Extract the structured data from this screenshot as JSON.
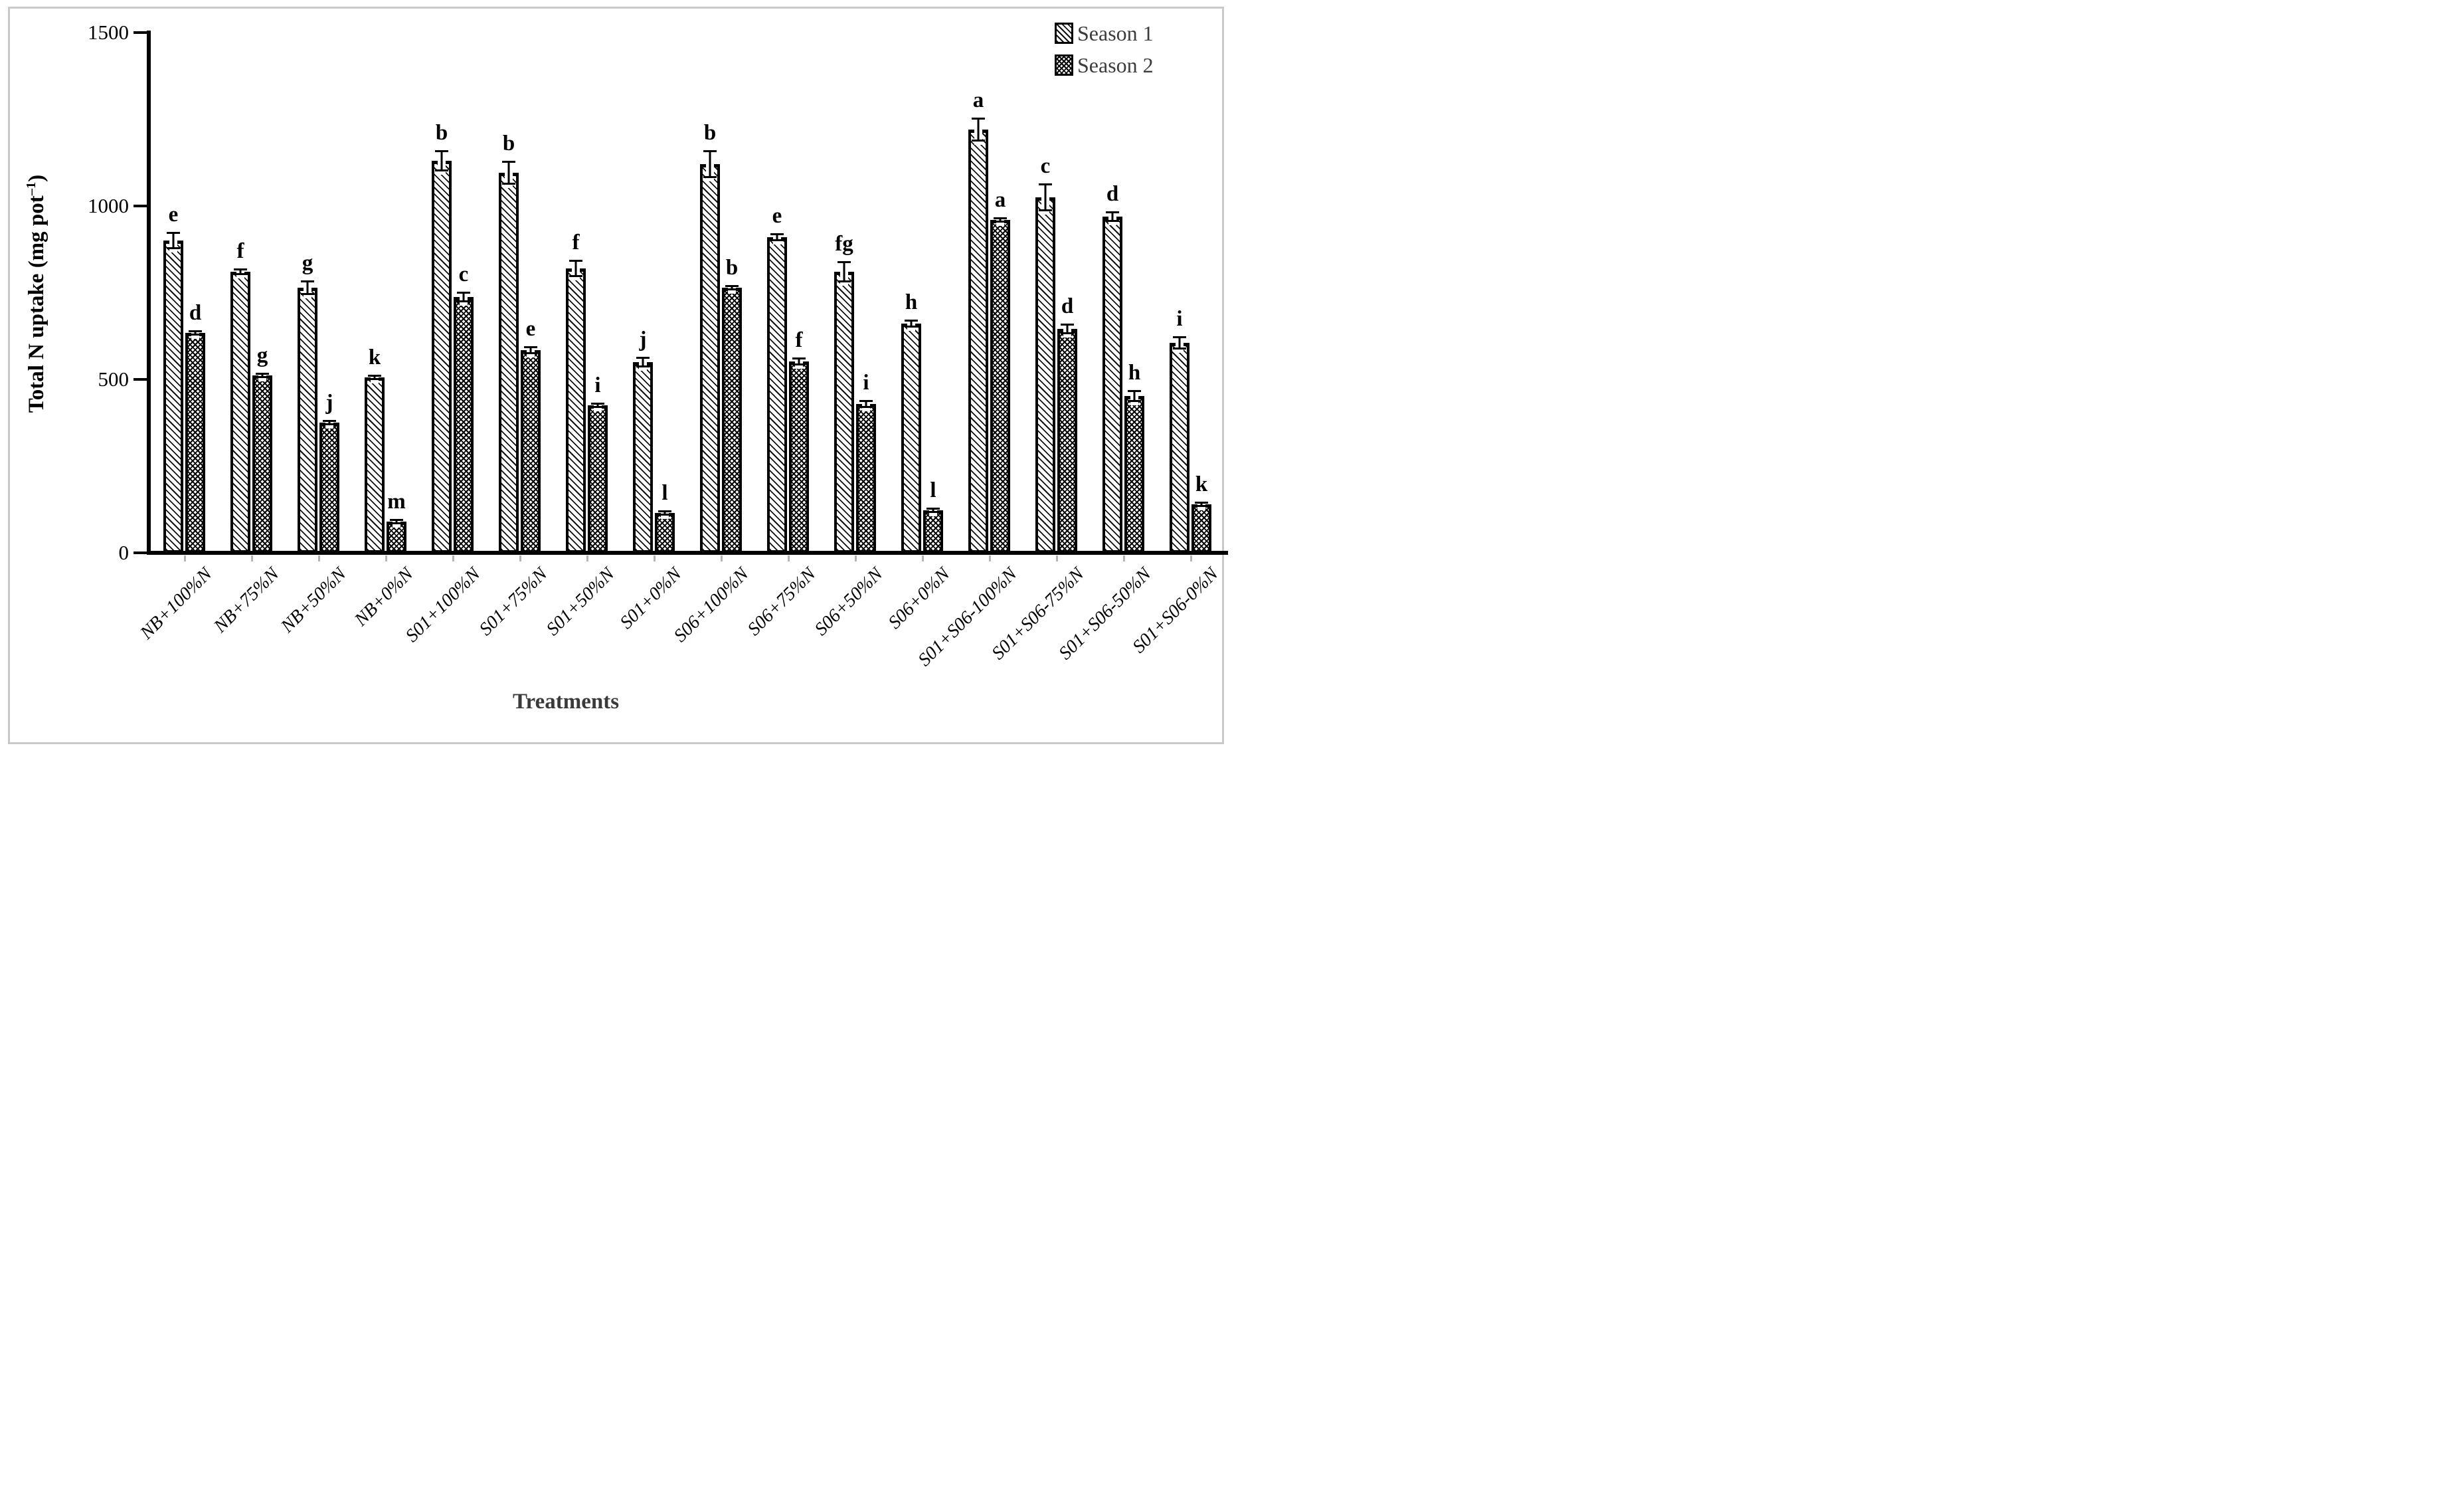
{
  "figure": {
    "ylabel_prefix": "Total N uptake (mg pot",
    "ylabel_sup": "–1",
    "ylabel_suffix": ")",
    "xlabel": "Treatments"
  },
  "chart_data": {
    "type": "bar",
    "title": "",
    "xlabel": "Treatments",
    "ylabel": "Total N uptake (mg pot⁻¹)",
    "ylim": [
      0,
      1500
    ],
    "yticks": [
      0,
      500,
      1000,
      1500
    ],
    "ytick_labels": [
      "0",
      "500",
      "1000",
      "1500"
    ],
    "grid": false,
    "legend_position": "top-right",
    "categories": [
      "NB+100%N",
      "NB+75%N",
      "NB+50%N",
      "NB+0%N",
      "S01+100%N",
      "S01+75%N",
      "S01+50%N",
      "S01+0%N",
      "S06+100%N",
      "S06+75%N",
      "S06+50%N",
      "S06+0%N",
      "S01+S06-100%N",
      "S01+S06-75%N",
      "S01+S06-50%N",
      "S01+S06-0%N"
    ],
    "series": [
      {
        "name": "Season 1",
        "pattern": "diagonal-hatch",
        "values": [
          900,
          810,
          765,
          505,
          1130,
          1095,
          820,
          550,
          1120,
          910,
          810,
          660,
          1220,
          1025,
          970,
          605
        ],
        "errors": [
          25,
          10,
          22,
          5,
          30,
          35,
          25,
          15,
          40,
          12,
          30,
          12,
          35,
          40,
          15,
          20
        ],
        "letters": [
          "e",
          "f",
          "g",
          "k",
          "b",
          "b",
          "f",
          "j",
          "b",
          "e",
          "fg",
          "h",
          "a",
          "c",
          "d",
          "i"
        ]
      },
      {
        "name": "Season 2",
        "pattern": "cross-hatch",
        "values": [
          635,
          512,
          375,
          90,
          737,
          585,
          425,
          115,
          765,
          552,
          430,
          122,
          960,
          645,
          452,
          140
        ],
        "errors": [
          8,
          5,
          5,
          4,
          15,
          12,
          8,
          5,
          8,
          12,
          12,
          4,
          8,
          15,
          18,
          6
        ],
        "letters": [
          "d",
          "g",
          "j",
          "m",
          "c",
          "e",
          "i",
          "l",
          "b",
          "f",
          "i",
          "l",
          "a",
          "d",
          "h",
          "k"
        ]
      }
    ]
  },
  "colors": {
    "bar_outline": "#000000",
    "axis": "#000000",
    "legend_text": "#3c3c3c",
    "x_title_text": "#3a3a3a",
    "frame_border": "#c9c9c9",
    "background": "#ffffff"
  }
}
